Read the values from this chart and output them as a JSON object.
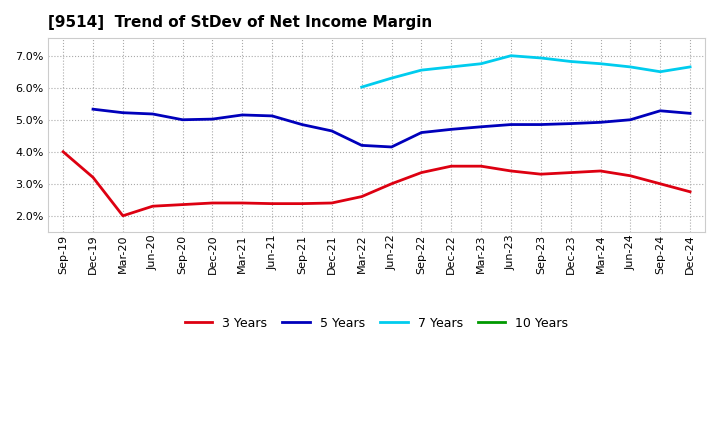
{
  "title": "[9514]  Trend of StDev of Net Income Margin",
  "x_labels": [
    "Sep-19",
    "Dec-19",
    "Mar-20",
    "Jun-20",
    "Sep-20",
    "Dec-20",
    "Mar-21",
    "Jun-21",
    "Sep-21",
    "Dec-21",
    "Mar-22",
    "Jun-22",
    "Sep-22",
    "Dec-22",
    "Mar-23",
    "Jun-23",
    "Sep-23",
    "Dec-23",
    "Mar-24",
    "Jun-24",
    "Sep-24",
    "Dec-24"
  ],
  "series_3y_x": [
    0,
    1,
    2,
    3,
    4,
    5,
    6,
    7,
    8,
    9,
    10,
    11,
    12,
    13,
    14,
    15,
    16,
    17,
    18,
    19,
    20,
    21
  ],
  "series_3y_v": [
    4.0,
    3.2,
    2.0,
    2.3,
    2.35,
    2.4,
    2.4,
    2.38,
    2.38,
    2.4,
    2.6,
    3.0,
    3.35,
    3.55,
    3.55,
    3.4,
    3.3,
    3.35,
    3.4,
    3.25,
    3.0,
    2.75
  ],
  "series_5y_x": [
    1,
    2,
    3,
    4,
    5,
    6,
    7,
    8,
    9,
    10,
    11,
    12,
    13,
    14,
    15,
    16,
    17,
    18,
    19,
    20,
    21
  ],
  "series_5y_v": [
    5.33,
    5.22,
    5.18,
    5.0,
    5.02,
    5.15,
    5.12,
    4.85,
    4.65,
    4.2,
    4.15,
    4.6,
    4.7,
    4.78,
    4.85,
    4.85,
    4.88,
    4.92,
    5.0,
    5.28,
    5.2
  ],
  "series_7y_x": [
    10,
    11,
    12,
    13,
    14,
    15,
    16,
    17,
    18,
    19,
    20,
    21
  ],
  "series_7y_v": [
    6.02,
    6.3,
    6.55,
    6.65,
    6.75,
    7.0,
    6.93,
    6.82,
    6.75,
    6.65,
    6.5,
    6.65
  ],
  "color_3y": "#dd0011",
  "color_5y": "#0000bb",
  "color_7y": "#00ccee",
  "color_10y": "#009900",
  "background_color": "#ffffff",
  "plot_bg_color": "#ffffff",
  "grid_color": "#aaaaaa",
  "ylim": [
    1.5,
    7.55
  ],
  "yticks": [
    2.0,
    3.0,
    4.0,
    5.0,
    6.0,
    7.0
  ]
}
